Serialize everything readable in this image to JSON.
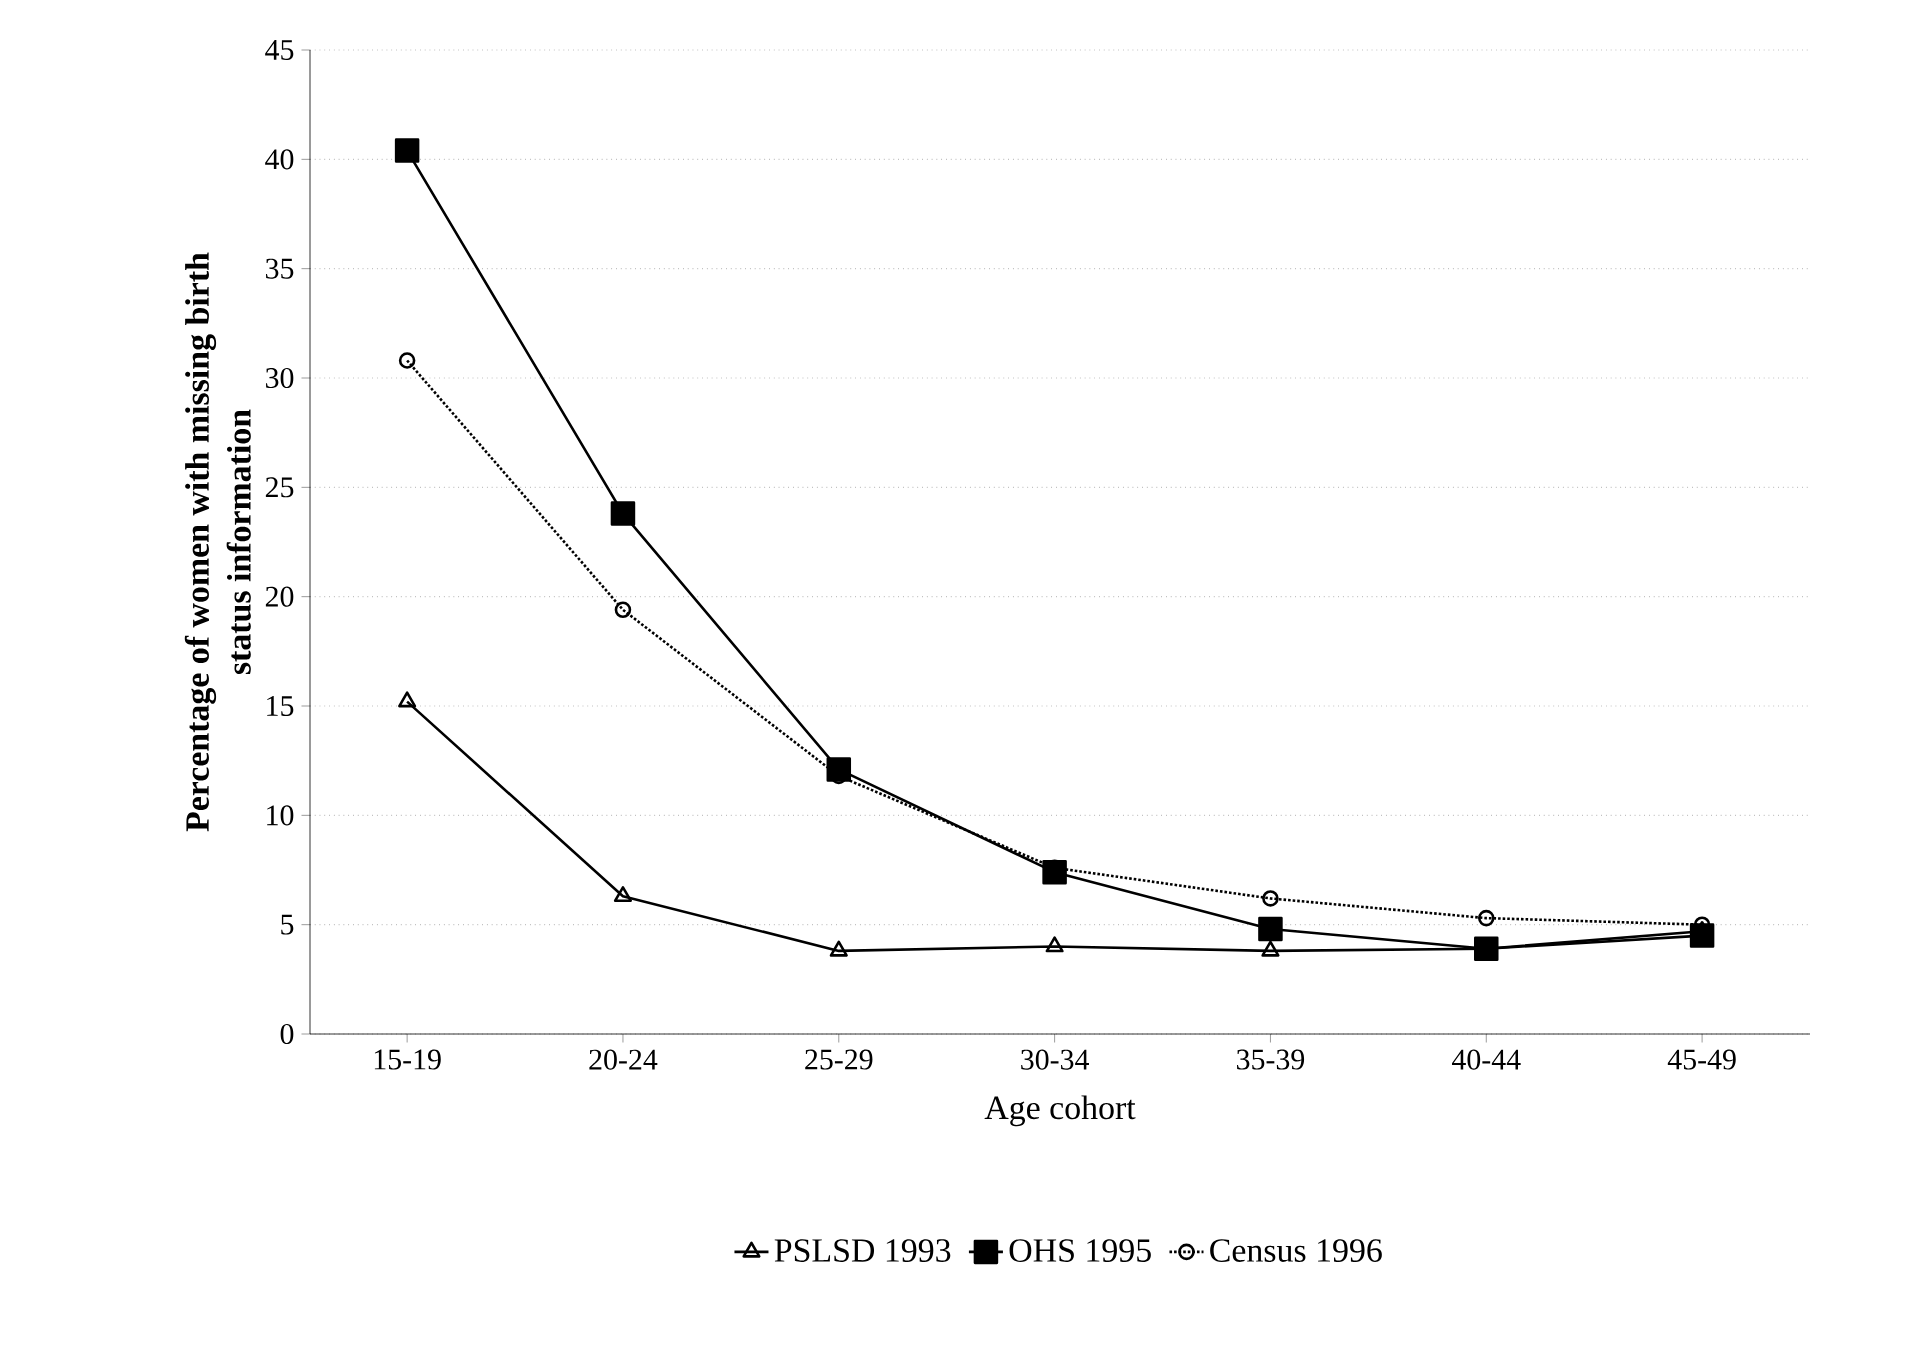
{
  "chart_data": {
    "type": "line",
    "xlabel": "Age cohort",
    "ylabel": "Percentage of women with missing birth status information",
    "categories": [
      "15-19",
      "20-24",
      "25-29",
      "30-34",
      "35-39",
      "40-44",
      "45-49"
    ],
    "series": [
      {
        "name": "PSLSD 1993",
        "color": "#000000",
        "marker": "triangle",
        "line_style": "solid",
        "values": [
          15.2,
          6.3,
          3.8,
          4.0,
          3.8,
          3.9,
          4.7
        ]
      },
      {
        "name": "OHS 1995",
        "color": "#000000",
        "marker": "square",
        "line_style": "solid",
        "values": [
          40.4,
          23.8,
          12.1,
          7.4,
          4.8,
          3.9,
          4.5
        ]
      },
      {
        "name": "Census  1996",
        "color": "#000000",
        "marker": "circle",
        "line_style": "dotted",
        "values": [
          30.8,
          19.4,
          11.8,
          7.6,
          6.2,
          5.3,
          5.0
        ]
      }
    ],
    "ylim": [
      0,
      45
    ],
    "yticks": [
      0,
      5,
      10,
      15,
      20,
      25,
      30,
      35,
      40,
      45
    ],
    "grid": "y",
    "legend": "bottom"
  }
}
